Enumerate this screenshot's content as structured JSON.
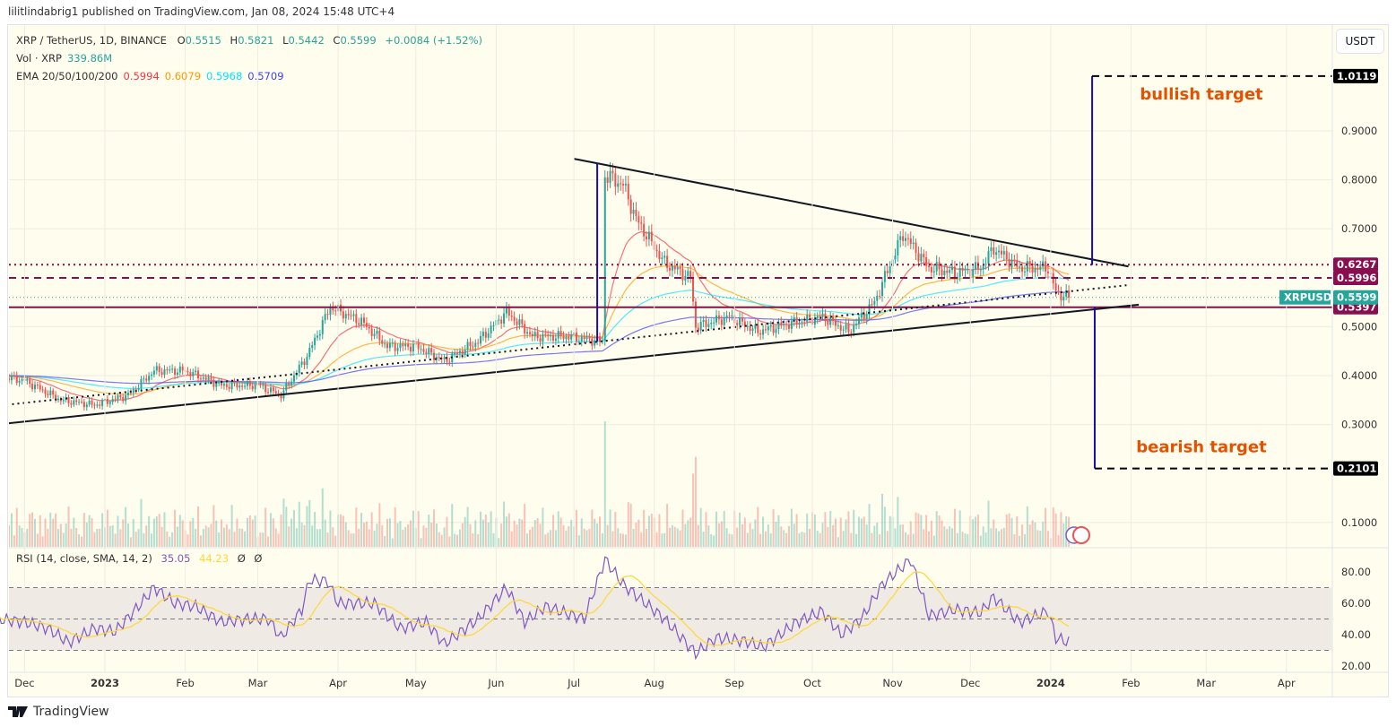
{
  "publisher_line": "lilitlindabrig1 published on TradingView.com, Jan 08, 2024 15:48 UTC+4",
  "legend": {
    "symbol": "XRP / TetherUS, 1D, BINANCE",
    "open_label": "O",
    "open": "0.5515",
    "high_label": "H",
    "high": "0.5821",
    "low_label": "L",
    "low": "0.5442",
    "close_label": "C",
    "close": "0.5599",
    "change": "+0.0084 (+1.52%)",
    "vol_label": "Vol · XRP",
    "vol": "339.86M",
    "ema_label": "EMA 20/50/100/200",
    "ema20": "0.5994",
    "ema50": "0.6079",
    "ema100": "0.5968",
    "ema200": "0.5709"
  },
  "currency_button": "USDT",
  "rsi_legend": {
    "label": "RSI (14, close, SMA, 14, 2)",
    "rsi": "35.05",
    "sma": "44.23",
    "extra1": "Ø",
    "extra2": "Ø"
  },
  "footer_logo": "TradingView",
  "colors": {
    "background": "#fffdee",
    "up": "#26a69a",
    "down": "#ef5350",
    "ema20": "#f23645",
    "ema50": "#ff9800",
    "ema100": "#00e5ff",
    "ema200": "#3f3fff",
    "levels": "#880e4f",
    "rsi": "#7e57c2",
    "rsi_sma": "#fdd835",
    "annotation": "#e65100",
    "target_line": "#1a0dab"
  },
  "chart_data": {
    "type": "candlestick",
    "title": "XRP / TetherUS, 1D, BINANCE",
    "ylim": [
      0.07,
      1.05
    ],
    "y_ticks": [
      "0.1000",
      "0.3000",
      "0.4000",
      "0.5000",
      "0.7000",
      "0.8000",
      "0.9000"
    ],
    "x_ticks": [
      {
        "label": "Dec",
        "date": "2022-12-01"
      },
      {
        "label": "2023",
        "date": "2023-01-01"
      },
      {
        "label": "Feb",
        "date": "2023-02-01"
      },
      {
        "label": "Mar",
        "date": "2023-03-01"
      },
      {
        "label": "Apr",
        "date": "2023-04-01"
      },
      {
        "label": "May",
        "date": "2023-05-01"
      },
      {
        "label": "Jun",
        "date": "2023-06-01"
      },
      {
        "label": "Jul",
        "date": "2023-07-01"
      },
      {
        "label": "Aug",
        "date": "2023-08-01"
      },
      {
        "label": "Sep",
        "date": "2023-09-01"
      },
      {
        "label": "Oct",
        "date": "2023-10-01"
      },
      {
        "label": "Nov",
        "date": "2023-11-01"
      },
      {
        "label": "Dec",
        "date": "2023-12-01"
      },
      {
        "label": "2024",
        "date": "2024-01-01"
      },
      {
        "label": "Feb",
        "date": "2024-02-01"
      },
      {
        "label": "Mar",
        "date": "2024-03-01"
      },
      {
        "label": "Apr",
        "date": "2024-04-01"
      }
    ],
    "closes": [
      [
        "2022-11-20",
        0.4
      ],
      [
        "2022-12-01",
        0.39
      ],
      [
        "2022-12-15",
        0.35
      ],
      [
        "2022-12-28",
        0.34
      ],
      [
        "2023-01-10",
        0.36
      ],
      [
        "2023-01-20",
        0.41
      ],
      [
        "2023-02-01",
        0.41
      ],
      [
        "2023-02-15",
        0.38
      ],
      [
        "2023-03-01",
        0.38
      ],
      [
        "2023-03-10",
        0.36
      ],
      [
        "2023-03-20",
        0.44
      ],
      [
        "2023-03-29",
        0.54
      ],
      [
        "2023-04-10",
        0.51
      ],
      [
        "2023-04-20",
        0.46
      ],
      [
        "2023-05-01",
        0.46
      ],
      [
        "2023-05-12",
        0.43
      ],
      [
        "2023-05-25",
        0.47
      ],
      [
        "2023-06-05",
        0.53
      ],
      [
        "2023-06-15",
        0.48
      ],
      [
        "2023-06-28",
        0.48
      ],
      [
        "2023-07-12",
        0.47
      ],
      [
        "2023-07-13",
        0.81
      ],
      [
        "2023-07-20",
        0.79
      ],
      [
        "2023-07-25",
        0.72
      ],
      [
        "2023-08-05",
        0.63
      ],
      [
        "2023-08-15",
        0.6
      ],
      [
        "2023-08-17",
        0.5
      ],
      [
        "2023-08-30",
        0.52
      ],
      [
        "2023-09-10",
        0.49
      ],
      [
        "2023-09-25",
        0.51
      ],
      [
        "2023-10-05",
        0.52
      ],
      [
        "2023-10-15",
        0.49
      ],
      [
        "2023-10-25",
        0.55
      ],
      [
        "2023-11-05",
        0.69
      ],
      [
        "2023-11-15",
        0.62
      ],
      [
        "2023-11-25",
        0.61
      ],
      [
        "2023-12-05",
        0.62
      ],
      [
        "2023-12-10",
        0.66
      ],
      [
        "2023-12-20",
        0.62
      ],
      [
        "2023-12-31",
        0.62
      ],
      [
        "2024-01-03",
        0.57
      ],
      [
        "2024-01-08",
        0.5599
      ]
    ],
    "price_levels": [
      {
        "value": "0.6267",
        "style": "dotted"
      },
      {
        "value": "0.5996",
        "style": "dashed"
      },
      {
        "value": "0.5397",
        "style": "solid"
      }
    ],
    "last_price": {
      "symbol": "XRPUSDT",
      "value": "0.5599"
    },
    "trendlines": [
      {
        "name": "upper",
        "from": [
          "2023-07-01",
          0.843
        ],
        "to": [
          "2024-01-31",
          0.623
        ],
        "style": "solid"
      },
      {
        "name": "lower",
        "from": [
          "2022-11-20",
          0.3
        ],
        "to": [
          "2024-02-04",
          0.545
        ],
        "style": "solid"
      },
      {
        "name": "inner",
        "from": [
          "2022-11-20",
          0.338
        ],
        "to": [
          "2024-01-31",
          0.585
        ],
        "style": "dotted"
      }
    ],
    "pole": {
      "date": "2023-07-10",
      "from": 0.47,
      "to": 0.835
    },
    "targets": [
      {
        "label": "bullish target",
        "value": "1.0119",
        "from_price": 0.626,
        "date": "2024-01-17"
      },
      {
        "label": "bearish target",
        "value": "0.2101",
        "from_price": 0.54,
        "date": "2024-01-18"
      }
    ],
    "rsi": {
      "ylim": [
        20,
        90
      ],
      "y_ticks": [
        "80.00",
        "60.00",
        "40.00",
        "20.00"
      ],
      "band": [
        30,
        70
      ],
      "mid": 50,
      "values": [
        [
          "2022-11-20",
          50
        ],
        [
          "2022-12-01",
          48
        ],
        [
          "2022-12-10",
          44
        ],
        [
          "2022-12-18",
          35
        ],
        [
          "2022-12-28",
          44
        ],
        [
          "2023-01-05",
          42
        ],
        [
          "2023-01-15",
          60
        ],
        [
          "2023-01-20",
          70
        ],
        [
          "2023-01-28",
          60
        ],
        [
          "2023-02-05",
          58
        ],
        [
          "2023-02-15",
          48
        ],
        [
          "2023-02-25",
          50
        ],
        [
          "2023-03-05",
          50
        ],
        [
          "2023-03-10",
          38
        ],
        [
          "2023-03-18",
          56
        ],
        [
          "2023-03-21",
          75
        ],
        [
          "2023-03-28",
          74
        ],
        [
          "2023-04-01",
          60
        ],
        [
          "2023-04-15",
          60
        ],
        [
          "2023-04-25",
          44
        ],
        [
          "2023-05-05",
          48
        ],
        [
          "2023-05-12",
          34
        ],
        [
          "2023-05-25",
          50
        ],
        [
          "2023-06-05",
          70
        ],
        [
          "2023-06-12",
          48
        ],
        [
          "2023-06-20",
          58
        ],
        [
          "2023-07-05",
          50
        ],
        [
          "2023-07-13",
          88
        ],
        [
          "2023-07-20",
          72
        ],
        [
          "2023-08-05",
          50
        ],
        [
          "2023-08-17",
          28
        ],
        [
          "2023-08-25",
          38
        ],
        [
          "2023-09-05",
          36
        ],
        [
          "2023-09-12",
          32
        ],
        [
          "2023-09-25",
          48
        ],
        [
          "2023-10-05",
          55
        ],
        [
          "2023-10-12",
          40
        ],
        [
          "2023-10-20",
          50
        ],
        [
          "2023-10-28",
          72
        ],
        [
          "2023-11-08",
          88
        ],
        [
          "2023-11-15",
          52
        ],
        [
          "2023-11-25",
          56
        ],
        [
          "2023-12-05",
          54
        ],
        [
          "2023-12-10",
          64
        ],
        [
          "2023-12-20",
          48
        ],
        [
          "2023-12-31",
          55
        ],
        [
          "2024-01-03",
          38
        ],
        [
          "2024-01-08",
          35
        ]
      ]
    }
  }
}
